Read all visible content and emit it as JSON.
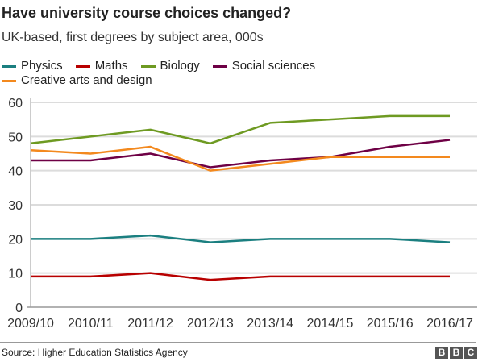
{
  "chart_data": {
    "type": "line",
    "title": "Have university course choices changed?",
    "subtitle": "UK-based, first degrees by subject area, 000s",
    "categories": [
      "2009/10",
      "2010/11",
      "2011/12",
      "2012/13",
      "2013/14",
      "2014/15",
      "2015/16",
      "2016/17"
    ],
    "ylim": [
      0,
      60
    ],
    "yticks": [
      0,
      10,
      20,
      30,
      40,
      50,
      60
    ],
    "grid": true,
    "legend_position": "top-left",
    "series": [
      {
        "name": "Physics",
        "color": "#1b7f80",
        "values": [
          20,
          20,
          21,
          19,
          20,
          20,
          20,
          19
        ]
      },
      {
        "name": "Maths",
        "color": "#b80000",
        "values": [
          9,
          9,
          10,
          8,
          9,
          9,
          9,
          9
        ]
      },
      {
        "name": "Biology",
        "color": "#6e9a22",
        "values": [
          48,
          50,
          52,
          48,
          54,
          55,
          56,
          56
        ]
      },
      {
        "name": "Social sciences",
        "color": "#6e0045",
        "values": [
          43,
          43,
          45,
          41,
          43,
          44,
          47,
          49
        ]
      },
      {
        "name": "Creative arts and design",
        "color": "#f3891e",
        "values": [
          46,
          45,
          47,
          40,
          42,
          44,
          44,
          44
        ]
      }
    ]
  },
  "source": "Source: Higher Education Statistics Agency",
  "logo": "BBC"
}
